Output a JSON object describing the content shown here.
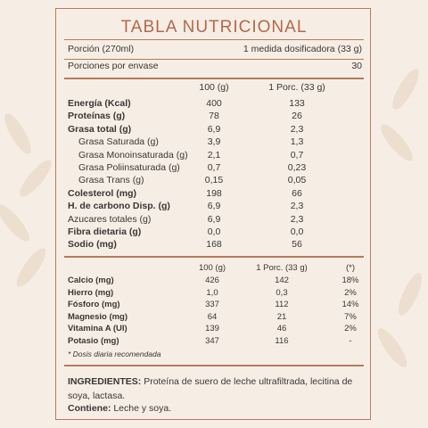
{
  "header": {
    "title": "TABLA NUTRICIONAL"
  },
  "serving": {
    "rows": [
      [
        "Porción  (270ml)",
        "1 medida dosificadora (33 g)"
      ],
      [
        "Porciones por envase",
        "30"
      ]
    ]
  },
  "table1": {
    "columns": [
      "100 (g)",
      "1 Porc. (33 g)"
    ],
    "rows": [
      [
        "Energía (Kcal)",
        "400",
        "133"
      ],
      [
        "Proteínas (g)",
        "78",
        "26"
      ],
      [
        "Grasa total (g)",
        "6,9",
        "2,3"
      ],
      [
        "Grasa Saturada (g)",
        "3,9",
        "1,3"
      ],
      [
        "Grasa Monoinsaturada (g)",
        "2,1",
        "0,7"
      ],
      [
        "Grasa Poliinsaturada (g)",
        "0,7",
        "0,23"
      ],
      [
        "Grasa Trans (g)",
        "0,15",
        "0,05"
      ],
      [
        "Colesterol (mg)",
        "198",
        "66"
      ],
      [
        "H. de carbono Disp. (g)",
        "6,9",
        "2,3"
      ],
      [
        "Azucares totales (g)",
        "6,9",
        "2,3"
      ],
      [
        "Fibra dietaria (g)",
        "0,0",
        "0,0"
      ],
      [
        "Sodio (mg)",
        "168",
        "56"
      ]
    ]
  },
  "table2": {
    "columns": [
      "100 (g)",
      "1 Porc. (33 g)",
      "(*)"
    ],
    "rows": [
      [
        "Calcio (mg)",
        "426",
        "142",
        "18%"
      ],
      [
        "Hierro (mg)",
        "1,0",
        "0,3",
        "2%"
      ],
      [
        "Fósforo (mg)",
        "337",
        "112",
        "14%"
      ],
      [
        "Magnesio (mg)",
        "64",
        "21",
        "7%"
      ],
      [
        "Vitamina A (UI)",
        "139",
        "46",
        "2%"
      ],
      [
        "Potasio (mg)",
        "347",
        "116",
        "-"
      ]
    ],
    "footnote": "* Dosis diaria recomendada"
  },
  "ingredients": {
    "label": "INGREDIENTES:",
    "text": "Proteína de suero de leche ultrafiltrada, lecitina de soya, lactasa."
  },
  "contains": {
    "label": "Contiene:",
    "text": "Leche y soya."
  }
}
